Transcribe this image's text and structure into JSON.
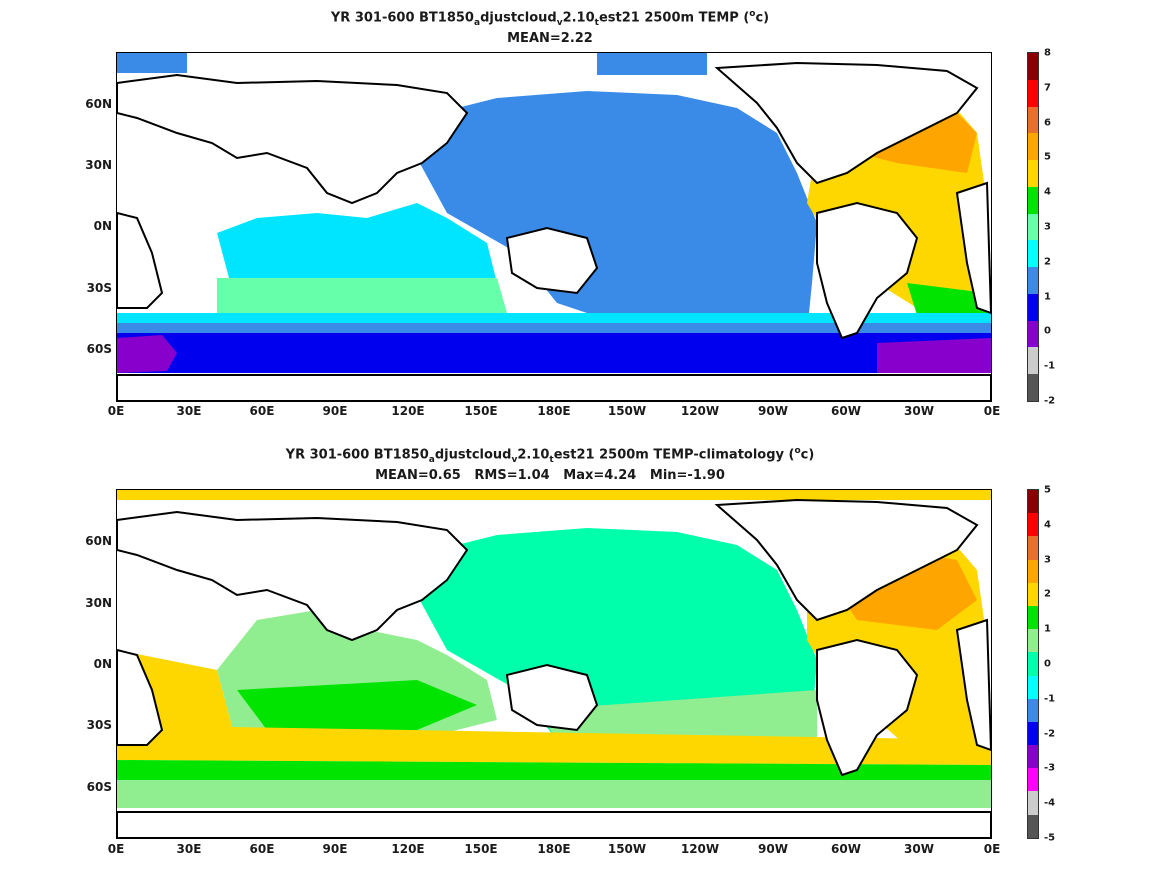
{
  "top": {
    "title_pre": "YR 301-600 BT1850",
    "title_sub1": "a",
    "title_mid1": "djustcloud",
    "title_sub2": "v",
    "title_mid2": "2.10",
    "title_sub3": "t",
    "title_post": "est21 2500m TEMP (",
    "title_sup": "o",
    "title_end": "c)",
    "subtitle": "MEAN=2.22",
    "colorbar": {
      "labels": [
        "8",
        "7",
        "6",
        "5",
        "4",
        "3",
        "2",
        "1",
        "0",
        "-1",
        "-2"
      ],
      "colors": [
        "#8b0000",
        "#ff0000",
        "#e8702a",
        "#ffa500",
        "#ffd700",
        "#00e400",
        "#66ffaa",
        "#00ffff",
        "#3a8be8",
        "#0000ee",
        "#8800cc",
        "#cccccc",
        "#555555"
      ]
    }
  },
  "bottom": {
    "title_pre": "YR 301-600 BT1850",
    "title_sub1": "a",
    "title_mid1": "djustcloud",
    "title_sub2": "v",
    "title_mid2": "2.10",
    "title_sub3": "t",
    "title_post": "est21 2500m TEMP-climatology (",
    "title_sup": "o",
    "title_end": "c)",
    "subtitle": "MEAN=0.65   RMS=1.04   Max=4.24   Min=-1.90",
    "colorbar": {
      "labels": [
        "5",
        "4",
        "3",
        "2",
        "1",
        "0",
        "-1",
        "-2",
        "-3",
        "-4",
        "-5"
      ],
      "colors": [
        "#8b0000",
        "#ff0000",
        "#e8702a",
        "#ffa500",
        "#ffd700",
        "#00e400",
        "#90ee90",
        "#00ffaa",
        "#00ffff",
        "#3a8be8",
        "#0000ee",
        "#8800cc",
        "#ff00ff",
        "#cccccc",
        "#555555"
      ]
    }
  },
  "axes": {
    "x_ticks": [
      "0E",
      "30E",
      "60E",
      "90E",
      "120E",
      "150E",
      "180E",
      "150W",
      "120W",
      "90W",
      "60W",
      "30W",
      "0E"
    ],
    "y_ticks": [
      "60N",
      "30N",
      "0N",
      "30S",
      "60S"
    ]
  }
}
